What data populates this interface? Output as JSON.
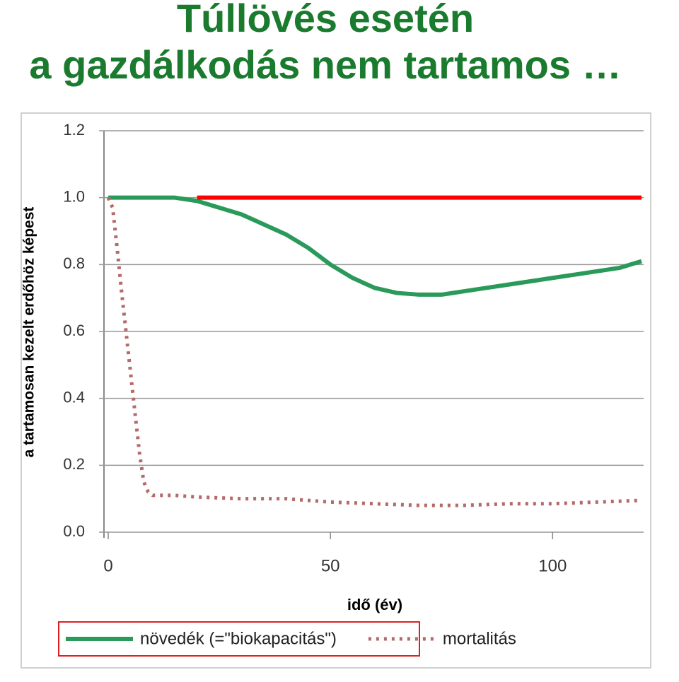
{
  "chart_data": {
    "type": "line",
    "title": [
      "Túllövés esetén",
      "a gazdálkodás nem tartamos …"
    ],
    "title_color": "#1a7a2e",
    "y_label": "a tartamosan kezelt erdőhöz képest",
    "x_label": "idő (év)",
    "xlim": [
      0,
      120
    ],
    "xticks": [
      0,
      50,
      100
    ],
    "ylim": [
      0,
      1.2
    ],
    "yticks": [
      {
        "value": 0,
        "label": "0.0"
      },
      0.2,
      0.4,
      0.6,
      0.8,
      {
        "value": 1,
        "label": "1.0"
      },
      1.2
    ],
    "grid": true,
    "legend": "bottom",
    "series": [
      {
        "name": "növedék (=\"biokapacitás\")",
        "color": "#2a9a5a",
        "style": "solid",
        "x": [
          0,
          5,
          10,
          15,
          20,
          25,
          30,
          35,
          40,
          45,
          50,
          55,
          60,
          65,
          70,
          75,
          80,
          85,
          90,
          95,
          100,
          105,
          110,
          115,
          120
        ],
        "values": [
          1.0,
          1.0,
          1.0,
          1.0,
          0.99,
          0.97,
          0.95,
          0.92,
          0.89,
          0.85,
          0.8,
          0.76,
          0.73,
          0.715,
          0.71,
          0.71,
          0.72,
          0.73,
          0.74,
          0.75,
          0.76,
          0.77,
          0.78,
          0.79,
          0.81
        ]
      },
      {
        "name": "mortalitás",
        "color": "#b56a6a",
        "style": "dotted",
        "x": [
          0,
          1,
          2,
          3,
          4,
          5,
          6,
          7,
          8,
          9,
          10,
          15,
          20,
          30,
          40,
          50,
          60,
          70,
          80,
          90,
          100,
          110,
          120
        ],
        "values": [
          1.0,
          0.97,
          0.85,
          0.72,
          0.6,
          0.48,
          0.36,
          0.24,
          0.15,
          0.12,
          0.11,
          0.11,
          0.105,
          0.1,
          0.1,
          0.09,
          0.085,
          0.08,
          0.08,
          0.085,
          0.085,
          0.09,
          0.095
        ]
      },
      {
        "color": "#ff0000",
        "style": "solid",
        "x": [
          20,
          120
        ],
        "values": [
          1.0,
          1.0
        ]
      }
    ]
  }
}
